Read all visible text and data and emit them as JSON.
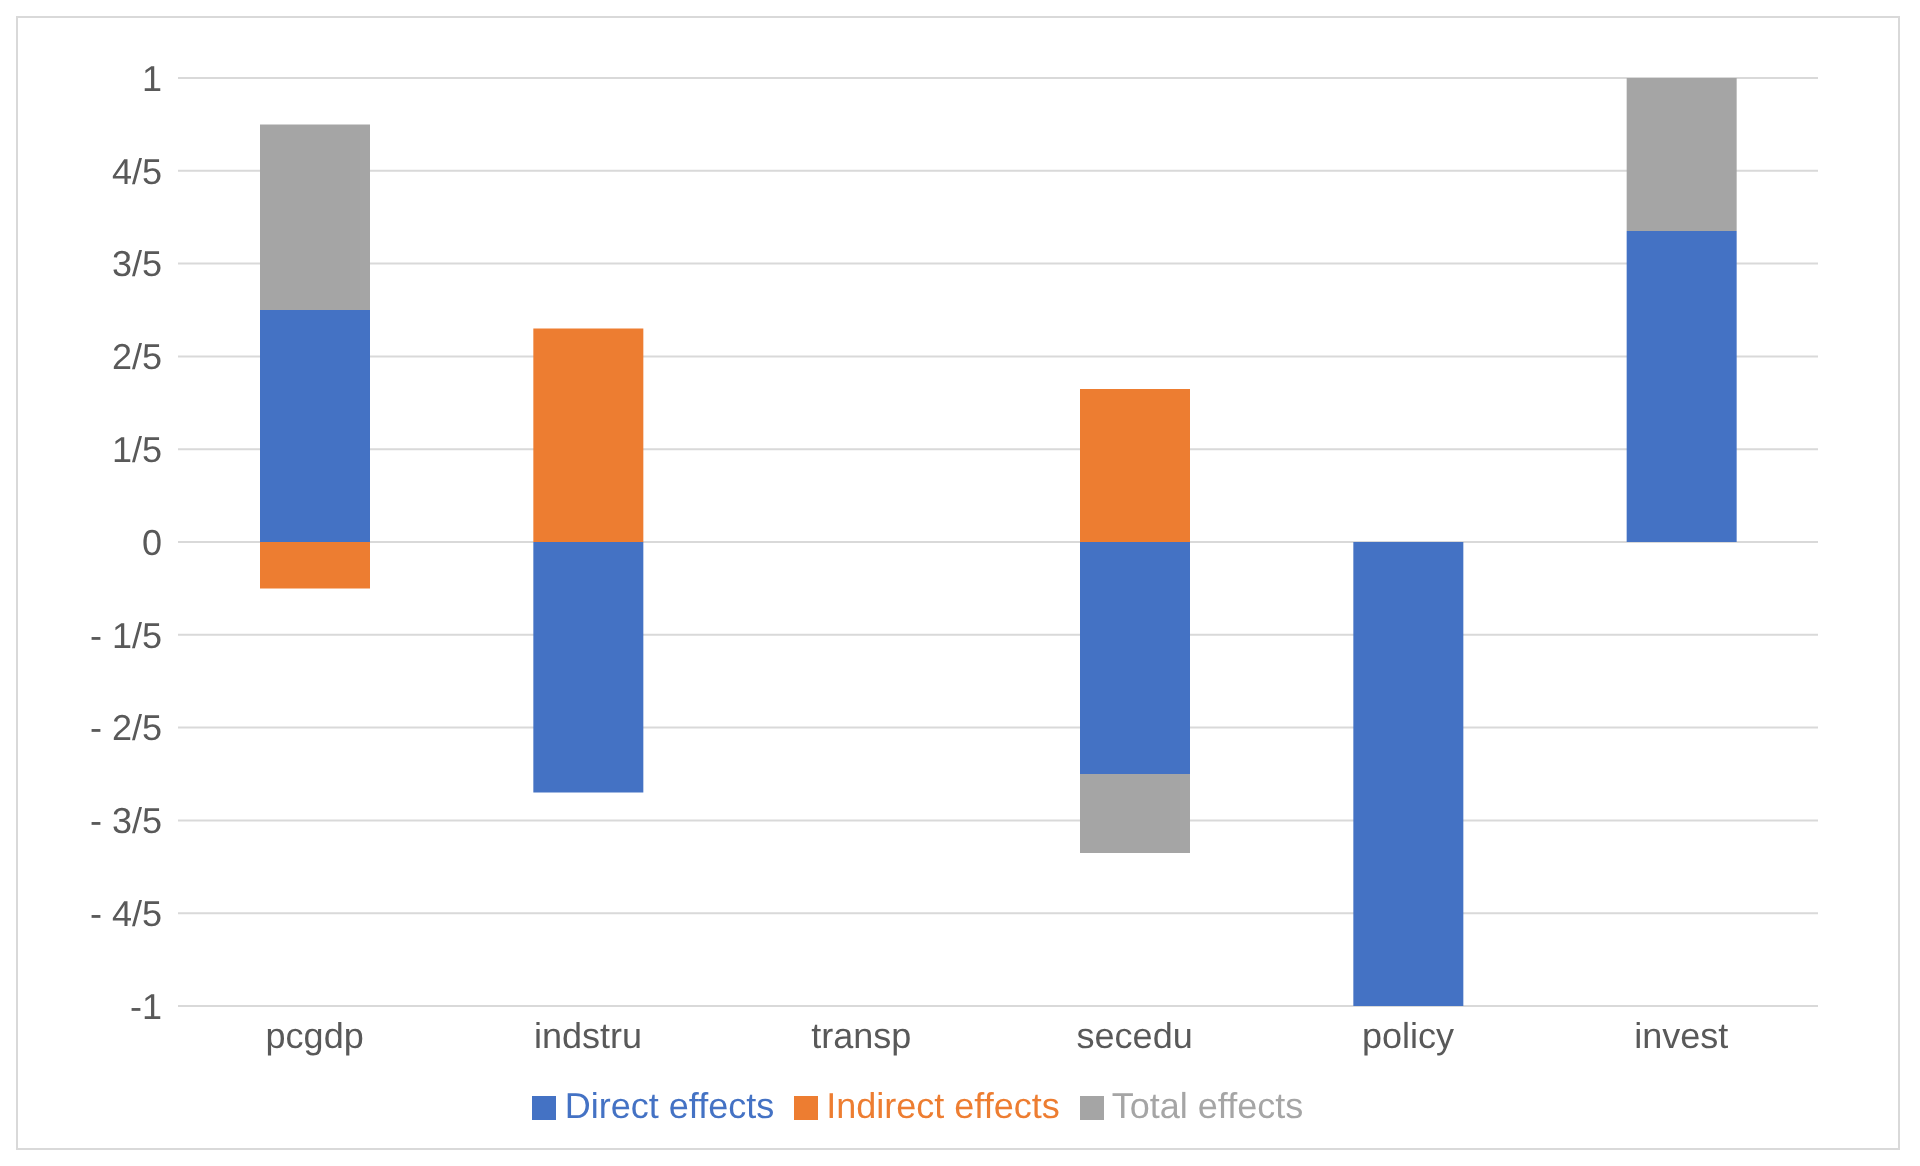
{
  "chart_data": {
    "type": "bar",
    "stacked": true,
    "categories": [
      "pcgdp",
      "indstru",
      "transp",
      "secedu",
      "policy",
      "invest"
    ],
    "series": [
      {
        "name": "Direct effects",
        "color": "#4472c4",
        "values": [
          0.5,
          -0.54,
          null,
          -0.5,
          -1,
          0.67
        ]
      },
      {
        "name": "Indirect effects",
        "color": "#ed7d31",
        "values": [
          -0.1,
          0.46,
          null,
          0.33,
          null,
          null
        ]
      },
      {
        "name": "Total effects",
        "color": "#a5a5a5",
        "values": [
          0.4,
          null,
          null,
          -0.17,
          null,
          0.33
        ]
      }
    ],
    "ylim": [
      -1,
      1
    ],
    "yticks": [
      {
        "value": -1,
        "label": "-1"
      },
      {
        "value": -0.8,
        "label": "- 4/5"
      },
      {
        "value": -0.6,
        "label": "- 3/5"
      },
      {
        "value": -0.4,
        "label": "- 2/5"
      },
      {
        "value": -0.2,
        "label": "- 1/5"
      },
      {
        "value": 0,
        "label": "0"
      },
      {
        "value": 0.2,
        "label": "1/5"
      },
      {
        "value": 0.4,
        "label": "2/5"
      },
      {
        "value": 0.6,
        "label": "3/5"
      },
      {
        "value": 0.8,
        "label": "4/5"
      },
      {
        "value": 1,
        "label": "1"
      }
    ],
    "grid": "y",
    "legend": "bottom"
  }
}
